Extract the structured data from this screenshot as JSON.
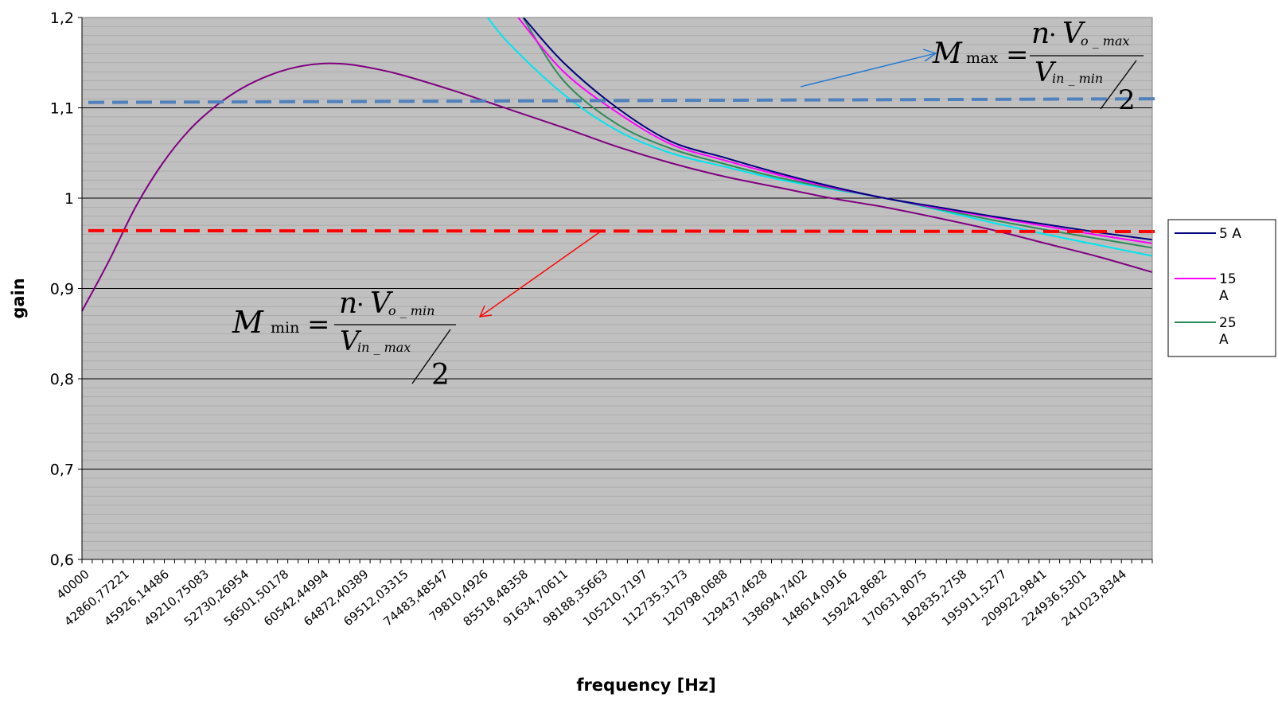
{
  "chart_data": {
    "type": "line",
    "xlabel": "frequency [Hz]",
    "ylabel": "gain",
    "ylim": [
      0.6,
      1.2
    ],
    "y_ticks": [
      "0,6",
      "0,7",
      "0,8",
      "0,9",
      "1",
      "1,1",
      "1,2"
    ],
    "x_tick_labels": [
      "40000",
      "42860,77221",
      "45926,14486",
      "49210,75083",
      "52730,26954",
      "56501,50178",
      "60542,44994",
      "64872,40389",
      "69512,03315",
      "74483,48547",
      "79810,4926",
      "85518,48358",
      "91634,70611",
      "98188,35663",
      "105210,7197",
      "112735,3173",
      "120798,0688",
      "129437,4628",
      "138694,7402",
      "148614,0916",
      "159242,8682",
      "170631,8075",
      "182835,2758",
      "195911,5277",
      "209922,9841",
      "224936,5301",
      "241023,8344"
    ],
    "grid": true,
    "legend_position": "right",
    "series": [
      {
        "name": "5 A",
        "color": "#000080",
        "points": [
          [
            0.4125,
            1.2
          ],
          [
            0.45,
            1.15
          ],
          [
            0.5,
            1.1
          ],
          [
            0.55,
            1.063
          ],
          [
            0.6,
            1.045
          ],
          [
            0.65,
            1.028
          ],
          [
            0.7,
            1.013
          ],
          [
            0.75,
            1.0
          ],
          [
            0.8,
            0.99
          ],
          [
            0.85,
            0.98
          ],
          [
            0.9,
            0.971
          ],
          [
            0.95,
            0.962
          ],
          [
            1.0,
            0.954
          ]
        ]
      },
      {
        "name": "15 A",
        "color": "#ff00ff",
        "points": [
          [
            0.4075,
            1.2
          ],
          [
            0.45,
            1.14
          ],
          [
            0.5,
            1.095
          ],
          [
            0.55,
            1.06
          ],
          [
            0.6,
            1.042
          ],
          [
            0.65,
            1.026
          ],
          [
            0.7,
            1.012
          ],
          [
            0.75,
            1.0
          ],
          [
            0.8,
            0.989
          ],
          [
            0.85,
            0.979
          ],
          [
            0.9,
            0.969
          ],
          [
            0.95,
            0.959
          ],
          [
            1.0,
            0.95
          ]
        ]
      },
      {
        "name": "25 A",
        "color": "#2e8b57",
        "points": [
          [
            0.412,
            1.2
          ],
          [
            0.45,
            1.13
          ],
          [
            0.5,
            1.082
          ],
          [
            0.55,
            1.055
          ],
          [
            0.6,
            1.038
          ],
          [
            0.65,
            1.023
          ],
          [
            0.7,
            1.011
          ],
          [
            0.75,
            1.0
          ],
          [
            0.8,
            0.988
          ],
          [
            0.85,
            0.976
          ],
          [
            0.9,
            0.965
          ],
          [
            0.95,
            0.955
          ],
          [
            1.0,
            0.945
          ]
        ]
      },
      {
        "name": "",
        "color": "#00e5ee",
        "points": [
          [
            0.379,
            1.2
          ],
          [
            0.4,
            1.17
          ],
          [
            0.45,
            1.115
          ],
          [
            0.5,
            1.075
          ],
          [
            0.55,
            1.05
          ],
          [
            0.6,
            1.035
          ],
          [
            0.65,
            1.021
          ],
          [
            0.7,
            1.01
          ],
          [
            0.75,
            1.0
          ],
          [
            0.8,
            0.987
          ],
          [
            0.85,
            0.973
          ],
          [
            0.9,
            0.96
          ],
          [
            0.95,
            0.948
          ],
          [
            1.0,
            0.936
          ]
        ]
      },
      {
        "name": "",
        "color": "#800080",
        "points": [
          [
            0.0,
            0.875
          ],
          [
            0.025,
            0.93
          ],
          [
            0.05,
            0.99
          ],
          [
            0.075,
            1.038
          ],
          [
            0.1,
            1.075
          ],
          [
            0.125,
            1.102
          ],
          [
            0.15,
            1.122
          ],
          [
            0.175,
            1.136
          ],
          [
            0.2,
            1.145
          ],
          [
            0.225,
            1.149
          ],
          [
            0.25,
            1.148
          ],
          [
            0.275,
            1.143
          ],
          [
            0.3,
            1.136
          ],
          [
            0.35,
            1.118
          ],
          [
            0.4,
            1.098
          ],
          [
            0.45,
            1.078
          ],
          [
            0.5,
            1.057
          ],
          [
            0.55,
            1.039
          ],
          [
            0.6,
            1.024
          ],
          [
            0.65,
            1.012
          ],
          [
            0.7,
            1.0
          ],
          [
            0.75,
            0.99
          ],
          [
            0.8,
            0.978
          ],
          [
            0.85,
            0.965
          ],
          [
            0.9,
            0.95
          ],
          [
            0.95,
            0.935
          ],
          [
            1.0,
            0.918
          ]
        ]
      }
    ],
    "reference_lines": [
      {
        "name": "M max",
        "color": "#4f81bd",
        "y_start": 1.106,
        "y_end": 1.11
      },
      {
        "name": "M min",
        "color": "#ff0000",
        "y_start": 0.964,
        "y_end": 0.963
      }
    ],
    "annotations": {
      "mmax": {
        "M": "M",
        "sub": "max",
        "eq": "=",
        "num_n": "n",
        "num_dot": "·",
        "num_V": "V",
        "num_sub": "o _ max",
        "den_V": "V",
        "den_sub": "in _ min",
        "den_2": "2"
      },
      "mmin": {
        "M": "M",
        "sub": "min",
        "eq": "=",
        "num_n": "n",
        "num_dot": "·",
        "num_V": "V",
        "num_sub": "o _ min",
        "den_V": "V",
        "den_sub": "in _ max",
        "den_2": "2"
      }
    }
  }
}
